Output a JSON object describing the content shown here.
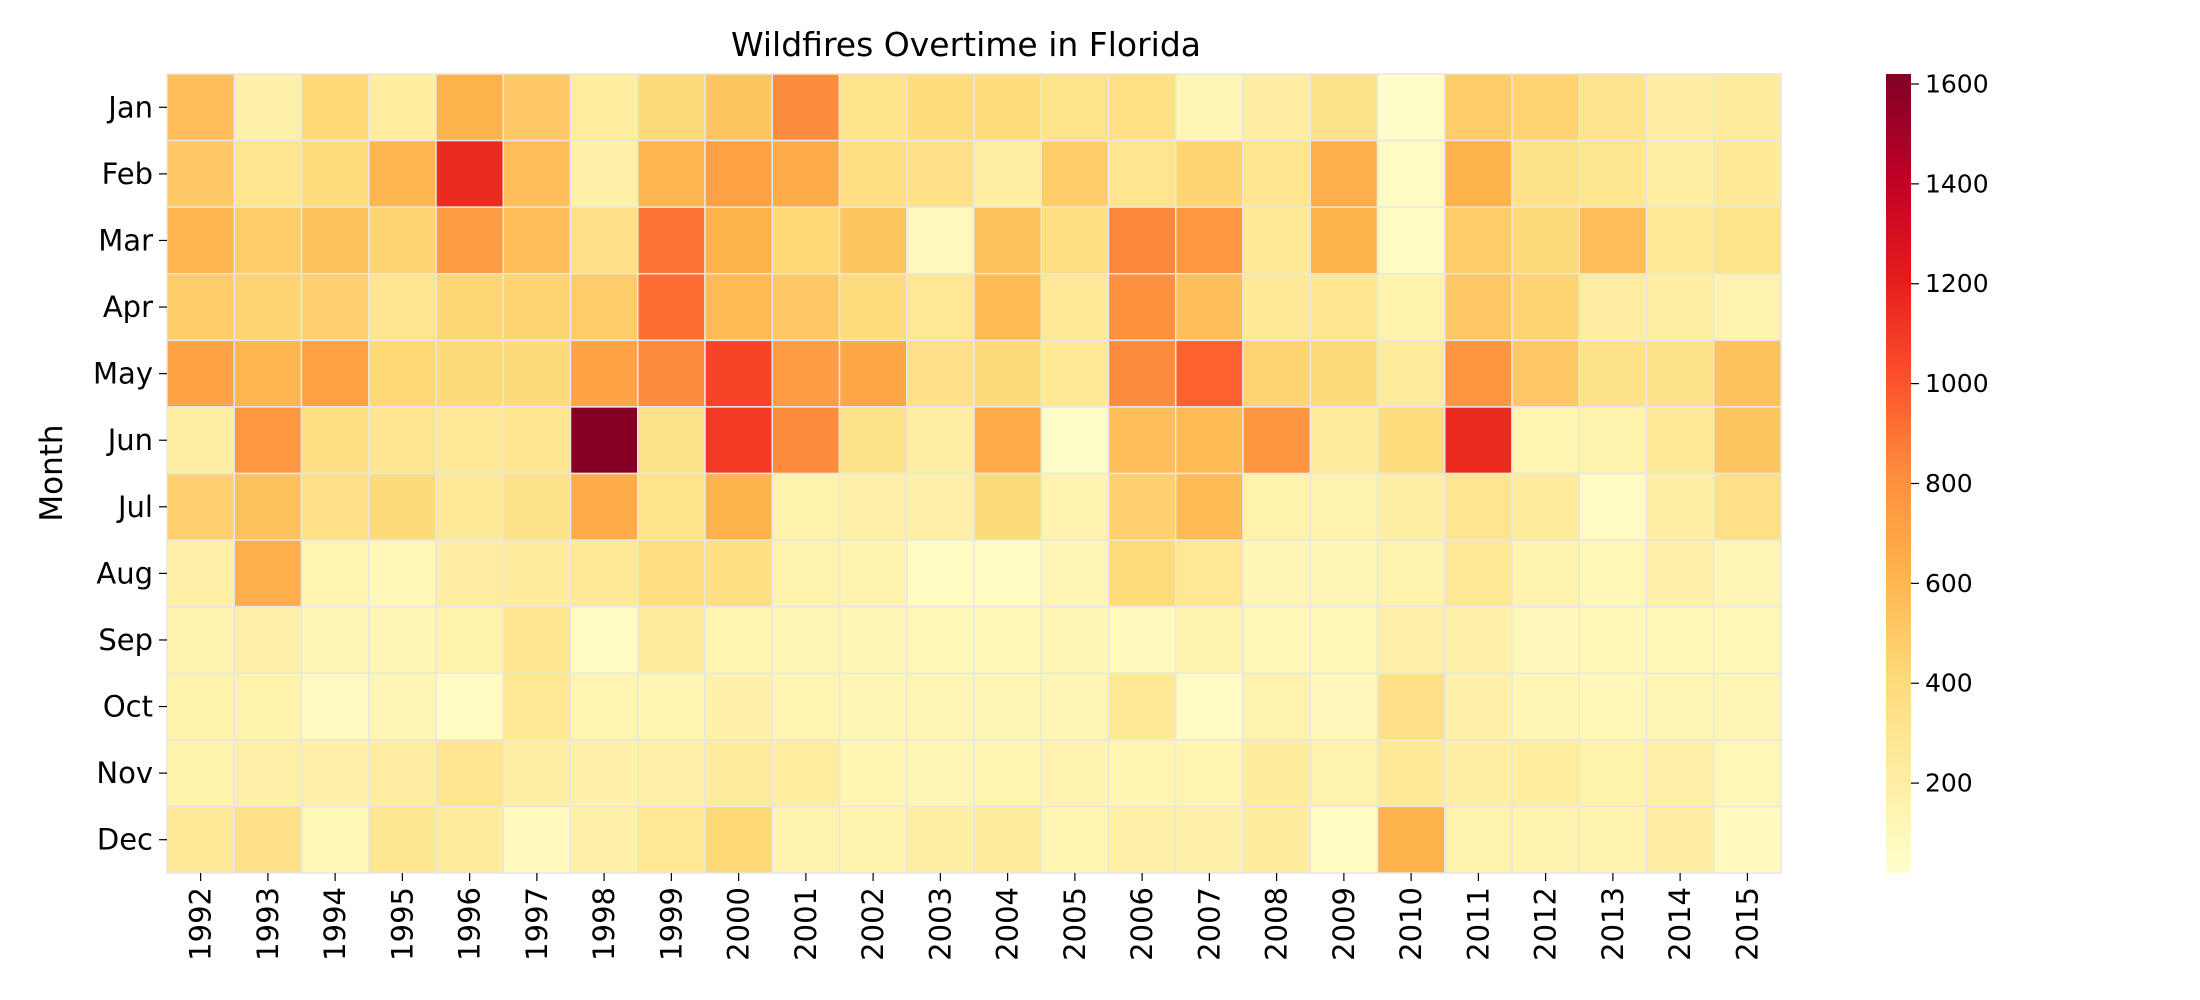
{
  "chart_data": {
    "type": "heatmap",
    "title": "Wildfires Overtime in Florida",
    "xlabel": "",
    "ylabel": "Month",
    "x": [
      "1992",
      "1993",
      "1994",
      "1995",
      "1996",
      "1997",
      "1998",
      "1999",
      "2000",
      "2001",
      "2002",
      "2003",
      "2004",
      "2005",
      "2006",
      "2007",
      "2008",
      "2009",
      "2010",
      "2011",
      "2012",
      "2013",
      "2014",
      "2015"
    ],
    "y": [
      "Jan",
      "Feb",
      "Mar",
      "Apr",
      "May",
      "Jun",
      "Jul",
      "Aug",
      "Sep",
      "Oct",
      "Nov",
      "Dec"
    ],
    "values": [
      [
        560,
        180,
        420,
        220,
        620,
        500,
        220,
        400,
        520,
        820,
        320,
        380,
        380,
        320,
        350,
        130,
        210,
        330,
        30,
        480,
        450,
        310,
        210,
        240
      ],
      [
        500,
        300,
        380,
        600,
        1160,
        560,
        180,
        600,
        720,
        650,
        360,
        340,
        200,
        480,
        300,
        440,
        300,
        640,
        70,
        620,
        330,
        290,
        200,
        250
      ],
      [
        600,
        480,
        540,
        440,
        740,
        560,
        340,
        900,
        620,
        420,
        520,
        90,
        540,
        360,
        840,
        760,
        250,
        620,
        60,
        480,
        400,
        560,
        250,
        320
      ],
      [
        480,
        440,
        460,
        300,
        430,
        440,
        480,
        920,
        580,
        500,
        380,
        280,
        580,
        260,
        800,
        560,
        250,
        300,
        170,
        500,
        440,
        210,
        200,
        150
      ],
      [
        700,
        600,
        720,
        420,
        400,
        400,
        700,
        820,
        1060,
        740,
        680,
        340,
        400,
        270,
        820,
        960,
        440,
        400,
        240,
        780,
        500,
        330,
        330,
        540
      ],
      [
        200,
        760,
        360,
        300,
        260,
        300,
        1600,
        330,
        1100,
        820,
        330,
        200,
        660,
        40,
        560,
        580,
        780,
        240,
        380,
        1160,
        140,
        160,
        250,
        520
      ],
      [
        460,
        540,
        340,
        400,
        250,
        330,
        650,
        320,
        620,
        170,
        190,
        190,
        400,
        150,
        460,
        580,
        170,
        160,
        200,
        300,
        240,
        60,
        200,
        340
      ],
      [
        190,
        640,
        140,
        110,
        210,
        230,
        250,
        370,
        360,
        160,
        150,
        70,
        70,
        130,
        390,
        280,
        130,
        130,
        160,
        260,
        150,
        110,
        180,
        130
      ],
      [
        150,
        190,
        120,
        130,
        170,
        300,
        70,
        240,
        140,
        130,
        120,
        110,
        110,
        130,
        90,
        160,
        110,
        110,
        190,
        180,
        100,
        110,
        110,
        110
      ],
      [
        170,
        170,
        80,
        120,
        70,
        280,
        140,
        140,
        180,
        140,
        130,
        120,
        130,
        130,
        260,
        60,
        160,
        100,
        340,
        180,
        120,
        110,
        120,
        130
      ],
      [
        170,
        190,
        190,
        210,
        300,
        200,
        180,
        190,
        240,
        220,
        140,
        130,
        140,
        150,
        140,
        140,
        230,
        160,
        250,
        200,
        220,
        170,
        190,
        110
      ],
      [
        250,
        340,
        110,
        290,
        240,
        90,
        190,
        280,
        420,
        150,
        160,
        200,
        230,
        140,
        190,
        180,
        230,
        70,
        620,
        160,
        150,
        150,
        210,
        90
      ]
    ],
    "colorbar": {
      "min": 20,
      "max": 1620,
      "ticks": [
        200,
        400,
        600,
        800,
        1000,
        1200,
        1400,
        1600
      ],
      "colormap": "YlOrRd"
    },
    "grid": false,
    "legend": "colorbar-right"
  }
}
